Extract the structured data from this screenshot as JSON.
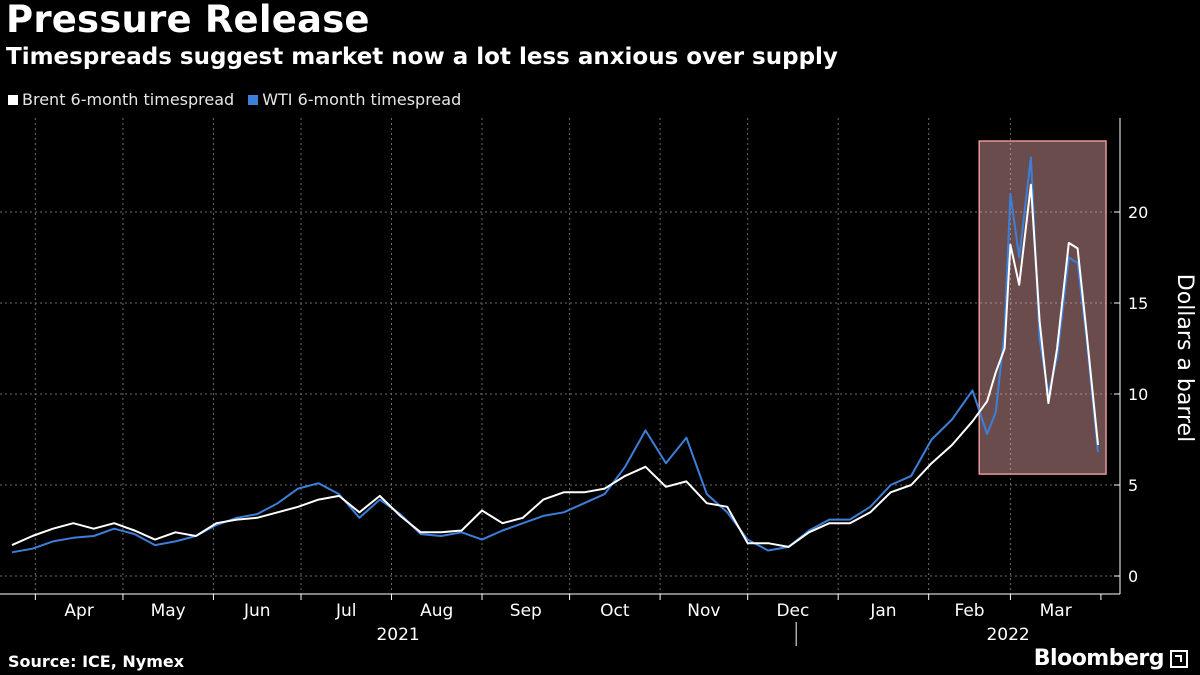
{
  "header": {
    "title": "Pressure Release",
    "subtitle": "Timespreads suggest market now a lot less anxious over supply"
  },
  "footer": {
    "source": "Source: ICE, Nymex",
    "brand": "Bloomberg"
  },
  "colors": {
    "background": "#000000",
    "brent": "#ffffff",
    "wti": "#3c7fd8",
    "highlight_fill": "#ffb5b5",
    "highlight_stroke": "#e79898",
    "grid": "#6b6b6b"
  },
  "chart_data": {
    "type": "line",
    "title": "Pressure Release",
    "subtitle": "Timespreads suggest market now a lot less anxious over supply",
    "ylabel": "Dollars a barrel",
    "ylim": [
      -1,
      25
    ],
    "yticks": [
      0,
      5,
      10,
      15,
      20
    ],
    "grid": true,
    "legend_position": "top-left",
    "x_months": [
      "Apr",
      "May",
      "Jun",
      "Jul",
      "Aug",
      "Sep",
      "Oct",
      "Nov",
      "Dec",
      "Jan",
      "Feb",
      "Mar"
    ],
    "x_years": [
      "2021",
      "2022"
    ],
    "highlight": {
      "start": "2022-02-19",
      "end": "2022-03-31",
      "ymin": 5.6,
      "ymax": 23.9
    },
    "series": [
      {
        "name": "Brent 6-month timespread",
        "points": [
          [
            "2021-03-24",
            1.7
          ],
          [
            "2021-03-31",
            2.2
          ],
          [
            "2021-04-07",
            2.6
          ],
          [
            "2021-04-14",
            2.9
          ],
          [
            "2021-04-21",
            2.6
          ],
          [
            "2021-04-28",
            2.9
          ],
          [
            "2021-05-05",
            2.5
          ],
          [
            "2021-05-12",
            2.0
          ],
          [
            "2021-05-19",
            2.4
          ],
          [
            "2021-05-26",
            2.2
          ],
          [
            "2021-06-02",
            2.9
          ],
          [
            "2021-06-09",
            3.1
          ],
          [
            "2021-06-16",
            3.2
          ],
          [
            "2021-06-23",
            3.5
          ],
          [
            "2021-06-30",
            3.8
          ],
          [
            "2021-07-07",
            4.2
          ],
          [
            "2021-07-14",
            4.4
          ],
          [
            "2021-07-21",
            3.5
          ],
          [
            "2021-07-28",
            4.4
          ],
          [
            "2021-08-04",
            3.3
          ],
          [
            "2021-08-11",
            2.4
          ],
          [
            "2021-08-18",
            2.4
          ],
          [
            "2021-08-25",
            2.5
          ],
          [
            "2021-09-01",
            3.6
          ],
          [
            "2021-09-08",
            2.9
          ],
          [
            "2021-09-15",
            3.2
          ],
          [
            "2021-09-22",
            4.2
          ],
          [
            "2021-09-29",
            4.6
          ],
          [
            "2021-10-06",
            4.6
          ],
          [
            "2021-10-13",
            4.8
          ],
          [
            "2021-10-20",
            5.5
          ],
          [
            "2021-10-27",
            6.0
          ],
          [
            "2021-11-03",
            4.9
          ],
          [
            "2021-11-10",
            5.2
          ],
          [
            "2021-11-17",
            4.0
          ],
          [
            "2021-11-24",
            3.8
          ],
          [
            "2021-12-01",
            1.8
          ],
          [
            "2021-12-08",
            1.8
          ],
          [
            "2021-12-15",
            1.6
          ],
          [
            "2021-12-22",
            2.4
          ],
          [
            "2021-12-29",
            2.9
          ],
          [
            "2022-01-05",
            2.9
          ],
          [
            "2022-01-12",
            3.5
          ],
          [
            "2022-01-19",
            4.6
          ],
          [
            "2022-01-26",
            5.0
          ],
          [
            "2022-02-02",
            6.2
          ],
          [
            "2022-02-09",
            7.2
          ],
          [
            "2022-02-16",
            8.5
          ],
          [
            "2022-02-21",
            9.6
          ],
          [
            "2022-02-24",
            11.2
          ],
          [
            "2022-02-27",
            12.5
          ],
          [
            "2022-03-01",
            18.2
          ],
          [
            "2022-03-04",
            16.0
          ],
          [
            "2022-03-08",
            21.5
          ],
          [
            "2022-03-11",
            14.0
          ],
          [
            "2022-03-14",
            9.5
          ],
          [
            "2022-03-17",
            12.5
          ],
          [
            "2022-03-21",
            18.3
          ],
          [
            "2022-03-24",
            18.0
          ],
          [
            "2022-03-27",
            13.5
          ],
          [
            "2022-03-31",
            7.2
          ]
        ]
      },
      {
        "name": "WTI 6-month timespread",
        "points": [
          [
            "2021-03-24",
            1.3
          ],
          [
            "2021-03-31",
            1.5
          ],
          [
            "2021-04-07",
            1.9
          ],
          [
            "2021-04-14",
            2.1
          ],
          [
            "2021-04-21",
            2.2
          ],
          [
            "2021-04-28",
            2.6
          ],
          [
            "2021-05-05",
            2.3
          ],
          [
            "2021-05-12",
            1.7
          ],
          [
            "2021-05-19",
            1.9
          ],
          [
            "2021-05-26",
            2.2
          ],
          [
            "2021-06-02",
            2.8
          ],
          [
            "2021-06-09",
            3.2
          ],
          [
            "2021-06-16",
            3.4
          ],
          [
            "2021-06-23",
            4.0
          ],
          [
            "2021-06-30",
            4.8
          ],
          [
            "2021-07-07",
            5.1
          ],
          [
            "2021-07-14",
            4.5
          ],
          [
            "2021-07-21",
            3.2
          ],
          [
            "2021-07-28",
            4.2
          ],
          [
            "2021-08-04",
            3.4
          ],
          [
            "2021-08-11",
            2.3
          ],
          [
            "2021-08-18",
            2.2
          ],
          [
            "2021-08-25",
            2.4
          ],
          [
            "2021-09-01",
            2.0
          ],
          [
            "2021-09-08",
            2.5
          ],
          [
            "2021-09-15",
            2.9
          ],
          [
            "2021-09-22",
            3.3
          ],
          [
            "2021-09-29",
            3.5
          ],
          [
            "2021-10-06",
            4.0
          ],
          [
            "2021-10-13",
            4.5
          ],
          [
            "2021-10-20",
            6.0
          ],
          [
            "2021-10-27",
            8.0
          ],
          [
            "2021-11-03",
            6.2
          ],
          [
            "2021-11-10",
            7.6
          ],
          [
            "2021-11-17",
            4.5
          ],
          [
            "2021-11-24",
            3.5
          ],
          [
            "2021-12-01",
            2.0
          ],
          [
            "2021-12-08",
            1.4
          ],
          [
            "2021-12-15",
            1.6
          ],
          [
            "2021-12-22",
            2.5
          ],
          [
            "2021-12-29",
            3.1
          ],
          [
            "2022-01-05",
            3.1
          ],
          [
            "2022-01-12",
            3.8
          ],
          [
            "2022-01-19",
            5.0
          ],
          [
            "2022-01-26",
            5.5
          ],
          [
            "2022-02-02",
            7.5
          ],
          [
            "2022-02-09",
            8.6
          ],
          [
            "2022-02-16",
            10.2
          ],
          [
            "2022-02-21",
            7.8
          ],
          [
            "2022-02-24",
            9.0
          ],
          [
            "2022-02-27",
            13.5
          ],
          [
            "2022-03-01",
            21.0
          ],
          [
            "2022-03-04",
            17.5
          ],
          [
            "2022-03-08",
            23.0
          ],
          [
            "2022-03-11",
            13.0
          ],
          [
            "2022-03-14",
            10.0
          ],
          [
            "2022-03-17",
            12.0
          ],
          [
            "2022-03-21",
            17.5
          ],
          [
            "2022-03-24",
            17.2
          ],
          [
            "2022-03-27",
            13.2
          ],
          [
            "2022-03-31",
            6.8
          ]
        ]
      }
    ]
  }
}
